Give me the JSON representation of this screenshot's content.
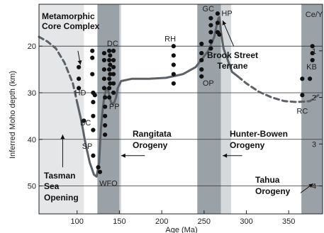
{
  "chart_data": {
    "type": "scatter",
    "xlabel": "Age (Ma)",
    "ylabel": "Inferred Moho depth (km)",
    "right_axis_label": "Ce/Y",
    "xlim": [
      55,
      390
    ],
    "ylim": [
      56,
      11
    ],
    "x_ticks": [
      100,
      150,
      200,
      250,
      300,
      350
    ],
    "y_ticks": [
      20,
      30,
      40,
      50
    ],
    "right_ticks": [
      {
        "label": "1",
        "depth": 21
      },
      {
        "label": "2",
        "depth": 31
      },
      {
        "label": "3",
        "depth": 41
      },
      {
        "label": "4",
        "depth": 50
      }
    ],
    "grid": "horizontal",
    "bands": [
      {
        "x0": 55,
        "x1": 108,
        "color": "#e4e6e8"
      },
      {
        "x0": 124,
        "x1": 150,
        "color": "#9aa1a7"
      },
      {
        "x0": 150,
        "x1": 152,
        "color": "#d3d6d9"
      },
      {
        "x0": 242,
        "x1": 270,
        "color": "#9aa1a7"
      },
      {
        "x0": 270,
        "x1": 282,
        "color": "#d6d9dc"
      },
      {
        "x0": 365,
        "x1": 390,
        "color": "#9aa1a7"
      }
    ],
    "points": [
      [
        102,
        24.5
      ],
      [
        102,
        27
      ],
      [
        102,
        29
      ],
      [
        108,
        36
      ],
      [
        118,
        21
      ],
      [
        118,
        22.5
      ],
      [
        118,
        26
      ],
      [
        119,
        30
      ],
      [
        119,
        32
      ],
      [
        119,
        35
      ],
      [
        119,
        38
      ],
      [
        119,
        43.5
      ],
      [
        121,
        30.5
      ],
      [
        125,
        46
      ],
      [
        127,
        47
      ],
      [
        132,
        21.5
      ],
      [
        132,
        23
      ],
      [
        132,
        25
      ],
      [
        132,
        27
      ],
      [
        132,
        29
      ],
      [
        133,
        31
      ],
      [
        133,
        33
      ],
      [
        133,
        35
      ],
      [
        133,
        37
      ],
      [
        133,
        39
      ],
      [
        138,
        21
      ],
      [
        138,
        23
      ],
      [
        138,
        25
      ],
      [
        138,
        27
      ],
      [
        138,
        29
      ],
      [
        138,
        31
      ],
      [
        139,
        22
      ],
      [
        139,
        24
      ],
      [
        139,
        26
      ],
      [
        139,
        28
      ],
      [
        143,
        21
      ],
      [
        143,
        23
      ],
      [
        143,
        24.5
      ],
      [
        143,
        26
      ],
      [
        143,
        28
      ],
      [
        143,
        30
      ],
      [
        214,
        20
      ],
      [
        214,
        22
      ],
      [
        214,
        24
      ],
      [
        214,
        26
      ],
      [
        214,
        28
      ],
      [
        247,
        19.5
      ],
      [
        247,
        21.5
      ],
      [
        247,
        23
      ],
      [
        247,
        25
      ],
      [
        247,
        26.5
      ],
      [
        258,
        14
      ],
      [
        258,
        15.5
      ],
      [
        258,
        17
      ],
      [
        258,
        19
      ],
      [
        258,
        20.5
      ],
      [
        266,
        13
      ],
      [
        266,
        15
      ],
      [
        266,
        17
      ],
      [
        268,
        17.5
      ],
      [
        366,
        27
      ],
      [
        366,
        30.5
      ],
      [
        375,
        27
      ],
      [
        378,
        20
      ],
      [
        378,
        21.5
      ],
      [
        378,
        23
      ]
    ],
    "solid_curve": [
      [
        100,
        32
      ],
      [
        105,
        36
      ],
      [
        110,
        41
      ],
      [
        115,
        45
      ],
      [
        120,
        47.6
      ],
      [
        123,
        48
      ],
      [
        126,
        45
      ],
      [
        128,
        38
      ],
      [
        130,
        34
      ],
      [
        132,
        31
      ],
      [
        134,
        29.5
      ],
      [
        136,
        29
      ],
      [
        138,
        30.5
      ],
      [
        140,
        32
      ],
      [
        142,
        32.5
      ],
      [
        144,
        32
      ],
      [
        146,
        31
      ],
      [
        148,
        29
      ],
      [
        152,
        27.5
      ],
      [
        165,
        27
      ],
      [
        185,
        27
      ],
      [
        205,
        26.8
      ],
      [
        225,
        26
      ],
      [
        240,
        24.5
      ],
      [
        255,
        21
      ],
      [
        262,
        18
      ],
      [
        265,
        15.5
      ],
      [
        267,
        14
      ],
      [
        268,
        13.8
      ],
      [
        269,
        15
      ],
      [
        270,
        17
      ],
      [
        273,
        20.5
      ],
      [
        278,
        23
      ],
      [
        283,
        25.5
      ],
      [
        290,
        26.5
      ]
    ],
    "dashed_curve_left": [
      [
        55,
        18
      ],
      [
        65,
        19
      ],
      [
        75,
        20.5
      ],
      [
        85,
        23.5
      ],
      [
        95,
        28
      ],
      [
        100,
        32
      ]
    ],
    "dashed_curve_right": [
      [
        290,
        26.5
      ],
      [
        300,
        28
      ],
      [
        315,
        29.8
      ],
      [
        330,
        31
      ],
      [
        345,
        31.8
      ],
      [
        360,
        32
      ],
      [
        375,
        31.8
      ],
      [
        385,
        30.5
      ]
    ],
    "curve_color": "#5b6166",
    "label_annotations": [
      {
        "text": "HD",
        "x": 104,
        "y": 30.5
      },
      {
        "text": "BC",
        "x": 110,
        "y": 37
      },
      {
        "text": "SP",
        "x": 112,
        "y": 42
      },
      {
        "text": "WFO",
        "x": 137,
        "y": 50
      },
      {
        "text": "DC",
        "x": 142,
        "y": 20
      },
      {
        "text": "PP",
        "x": 144,
        "y": 33.5
      },
      {
        "text": "RH",
        "x": 210,
        "y": 19
      },
      {
        "text": "GC",
        "x": 255,
        "y": 12.5
      },
      {
        "text": "HP",
        "x": 277,
        "y": 13.5
      },
      {
        "text": "OP",
        "x": 255,
        "y": 28.5
      },
      {
        "text": "KB",
        "x": 377,
        "y": 25
      },
      {
        "text": "RC",
        "x": 366,
        "y": 34.5
      }
    ],
    "text_annotations": {
      "metamorphic_core_complex_line1": "Metamorphic",
      "metamorphic_core_complex_line2": "Core Complex",
      "brook_street_line1": "Brook Street",
      "brook_street_line2": "Terrane",
      "rangitata_line1": "Rangitata",
      "rangitata_line2": "Orogeny",
      "hunter_bowen_line1": "Hunter-Bowen",
      "hunter_bowen_line2": "Orogeny",
      "tasman_line1": "Tasman",
      "tasman_line2": "Sea",
      "tasman_line3": "Opening",
      "tahua_line1": "Tahua",
      "tahua_line2": "Orogeny"
    }
  }
}
